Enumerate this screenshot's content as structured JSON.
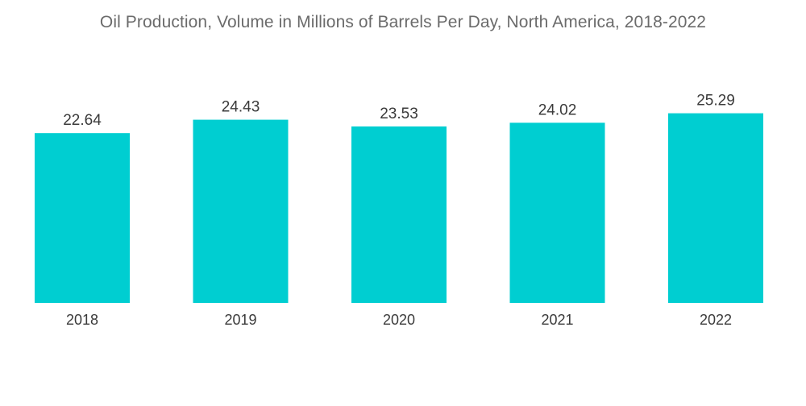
{
  "chart_data": {
    "type": "bar",
    "title": "Oil Production, Volume in Millions of Barrels Per Day, North America, 2018-2022",
    "categories": [
      "2018",
      "2019",
      "2020",
      "2021",
      "2022"
    ],
    "values": [
      22.64,
      24.43,
      23.53,
      24.02,
      25.29
    ],
    "value_labels": [
      "22.64",
      "24.43",
      "23.53",
      "24.02",
      "25.29"
    ],
    "xlabel": "",
    "ylabel": "",
    "ylim": [
      0,
      27.5
    ],
    "grid": false,
    "legend": "none",
    "bar_color": "#00ced1"
  }
}
